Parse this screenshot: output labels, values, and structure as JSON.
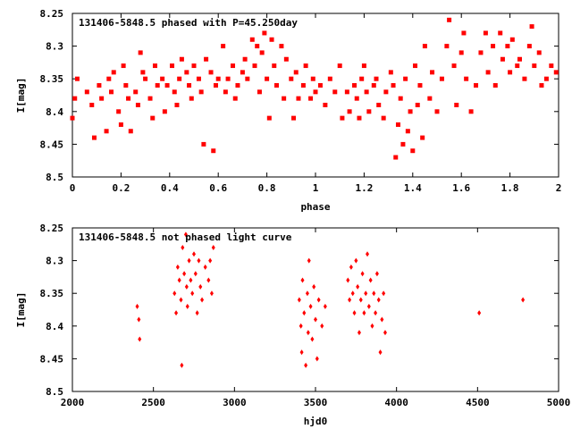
{
  "colors": {
    "points": "#ff0000",
    "axes": "#000000",
    "background": "#ffffff"
  },
  "chart_data": [
    {
      "type": "scatter",
      "title": "131406-5848.5 phased with P=45.250day",
      "xlabel": "phase",
      "ylabel": "I[mag]",
      "xlim": [
        0,
        2
      ],
      "ylim": [
        8.25,
        8.5
      ],
      "y_inverted": true,
      "marker": "filled square",
      "xticks": [
        "0",
        "0.2",
        "0.4",
        "0.6",
        "0.8",
        "1",
        "1.2",
        "1.4",
        "1.6",
        "1.8",
        "2"
      ],
      "yticks": [
        "8.25",
        "8.3",
        "8.35",
        "8.4",
        "8.45",
        "8.5"
      ],
      "series": [
        {
          "x": [
            0.0,
            0.01,
            0.02,
            0.06,
            0.08,
            0.09,
            0.11,
            0.12,
            0.14,
            0.15,
            0.16,
            0.17,
            0.19,
            0.2,
            0.21,
            0.22,
            0.23,
            0.24,
            0.26,
            0.27,
            0.28,
            0.29,
            0.3,
            0.32,
            0.33,
            0.34,
            0.35,
            0.37,
            0.38,
            0.39,
            0.41,
            0.42,
            0.43,
            0.44,
            0.45,
            0.47,
            0.48,
            0.49,
            0.5,
            0.52,
            0.53,
            0.54,
            0.55,
            0.57,
            0.58,
            0.59,
            0.6,
            0.62,
            0.63,
            0.64,
            0.66,
            0.67,
            0.68,
            0.7,
            0.71,
            0.72,
            0.74,
            0.75,
            0.76,
            0.77,
            0.78,
            0.79,
            0.8,
            0.81,
            0.82,
            0.83,
            0.84,
            0.86,
            0.87,
            0.88,
            0.9,
            0.91,
            0.92,
            0.93,
            0.95,
            0.96,
            0.98,
            0.99,
            1.0,
            1.02,
            1.04,
            1.06,
            1.08,
            1.1,
            1.11,
            1.13,
            1.14,
            1.16,
            1.17,
            1.18,
            1.19,
            1.2,
            1.21,
            1.22,
            1.24,
            1.25,
            1.26,
            1.28,
            1.29,
            1.31,
            1.32,
            1.33,
            1.34,
            1.35,
            1.36,
            1.37,
            1.38,
            1.39,
            1.4,
            1.41,
            1.42,
            1.43,
            1.44,
            1.45,
            1.47,
            1.48,
            1.5,
            1.52,
            1.54,
            1.55,
            1.57,
            1.58,
            1.6,
            1.61,
            1.62,
            1.64,
            1.66,
            1.68,
            1.7,
            1.71,
            1.73,
            1.74,
            1.76,
            1.77,
            1.79,
            1.8,
            1.81,
            1.83,
            1.84,
            1.86,
            1.88,
            1.89,
            1.9,
            1.92,
            1.93,
            1.95,
            1.97,
            1.99
          ],
          "y": [
            8.41,
            8.38,
            8.35,
            8.37,
            8.39,
            8.44,
            8.36,
            8.38,
            8.43,
            8.35,
            8.37,
            8.34,
            8.4,
            8.42,
            8.33,
            8.36,
            8.38,
            8.43,
            8.37,
            8.39,
            8.31,
            8.34,
            8.35,
            8.38,
            8.41,
            8.33,
            8.36,
            8.35,
            8.4,
            8.36,
            8.33,
            8.37,
            8.39,
            8.35,
            8.32,
            8.34,
            8.36,
            8.38,
            8.33,
            8.35,
            8.37,
            8.45,
            8.32,
            8.34,
            8.46,
            8.36,
            8.35,
            8.3,
            8.37,
            8.35,
            8.33,
            8.38,
            8.36,
            8.34,
            8.32,
            8.35,
            8.29,
            8.33,
            8.3,
            8.37,
            8.31,
            8.28,
            8.35,
            8.41,
            8.29,
            8.33,
            8.36,
            8.3,
            8.38,
            8.32,
            8.35,
            8.41,
            8.34,
            8.38,
            8.36,
            8.33,
            8.38,
            8.35,
            8.37,
            8.36,
            8.39,
            8.35,
            8.37,
            8.33,
            8.41,
            8.37,
            8.4,
            8.36,
            8.38,
            8.41,
            8.35,
            8.33,
            8.37,
            8.4,
            8.36,
            8.35,
            8.39,
            8.41,
            8.37,
            8.34,
            8.36,
            8.47,
            8.42,
            8.38,
            8.45,
            8.35,
            8.43,
            8.4,
            8.46,
            8.33,
            8.39,
            8.36,
            8.44,
            8.3,
            8.38,
            8.34,
            8.4,
            8.35,
            8.3,
            8.26,
            8.33,
            8.39,
            8.31,
            8.28,
            8.35,
            8.4,
            8.36,
            8.31,
            8.28,
            8.34,
            8.3,
            8.36,
            8.28,
            8.32,
            8.3,
            8.34,
            8.29,
            8.33,
            8.32,
            8.35,
            8.3,
            8.27,
            8.33,
            8.31,
            8.36,
            8.35,
            8.33,
            8.34
          ]
        }
      ]
    },
    {
      "type": "scatter",
      "title": "131406-5848.5 not phased light curve",
      "xlabel": "hjd0",
      "ylabel": "I[mag]",
      "xlim": [
        2000,
        5000
      ],
      "ylim": [
        8.25,
        8.5
      ],
      "y_inverted": true,
      "marker": "filled diamond",
      "xticks": [
        "2000",
        "2500",
        "3000",
        "3500",
        "4000",
        "4500",
        "5000"
      ],
      "yticks": [
        "8.25",
        "8.3",
        "8.35",
        "8.4",
        "8.45",
        "8.5"
      ],
      "series": [
        {
          "x": [
            2400,
            2410,
            2415,
            2630,
            2640,
            2650,
            2660,
            2670,
            2680,
            2690,
            2700,
            2705,
            2710,
            2720,
            2730,
            2740,
            2750,
            2760,
            2770,
            2780,
            2790,
            2800,
            2820,
            2840,
            2850,
            2860,
            2870,
            2675,
            3400,
            3410,
            3415,
            3420,
            3430,
            3440,
            3450,
            3455,
            3460,
            3470,
            3480,
            3490,
            3500,
            3510,
            3520,
            3540,
            3560,
            3700,
            3710,
            3720,
            3730,
            3740,
            3750,
            3760,
            3770,
            3780,
            3790,
            3800,
            3810,
            3820,
            3830,
            3840,
            3850,
            3860,
            3870,
            3880,
            3890,
            3900,
            3910,
            3920,
            3930,
            4510,
            4780
          ],
          "y": [
            8.37,
            8.39,
            8.42,
            8.35,
            8.38,
            8.31,
            8.33,
            8.36,
            8.28,
            8.32,
            8.26,
            8.34,
            8.37,
            8.3,
            8.33,
            8.35,
            8.29,
            8.32,
            8.38,
            8.3,
            8.34,
            8.36,
            8.31,
            8.33,
            8.3,
            8.35,
            8.28,
            8.46,
            8.36,
            8.4,
            8.44,
            8.33,
            8.38,
            8.46,
            8.35,
            8.41,
            8.3,
            8.37,
            8.42,
            8.34,
            8.39,
            8.45,
            8.36,
            8.4,
            8.37,
            8.33,
            8.36,
            8.31,
            8.35,
            8.38,
            8.3,
            8.34,
            8.41,
            8.36,
            8.32,
            8.38,
            8.35,
            8.29,
            8.37,
            8.33,
            8.4,
            8.35,
            8.38,
            8.32,
            8.36,
            8.44,
            8.39,
            8.35,
            8.41,
            8.38,
            8.36
          ]
        }
      ]
    }
  ]
}
